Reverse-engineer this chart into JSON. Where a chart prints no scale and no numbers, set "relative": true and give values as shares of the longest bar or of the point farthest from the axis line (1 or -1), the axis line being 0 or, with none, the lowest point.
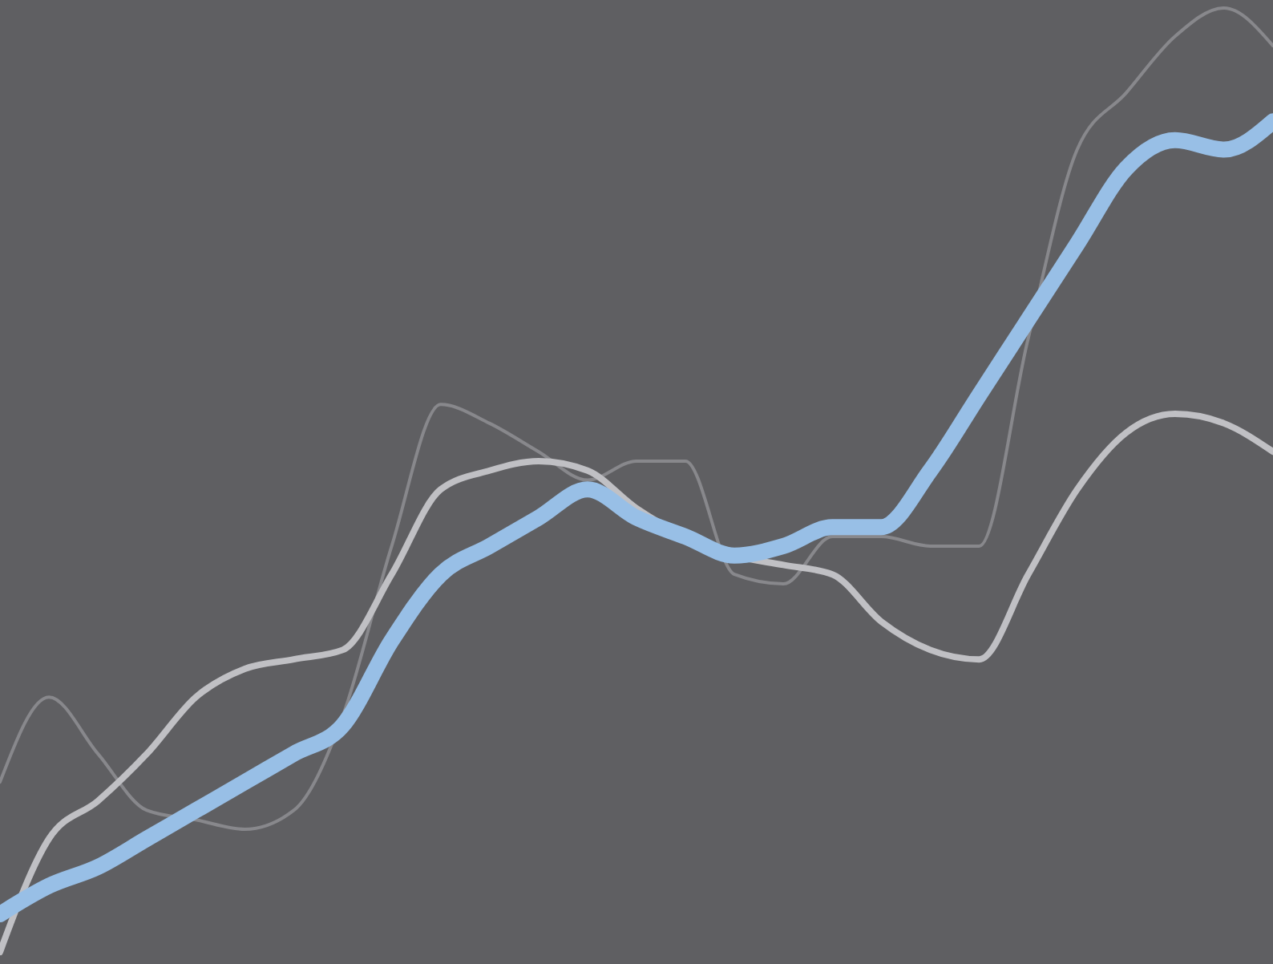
{
  "chart_data": {
    "type": "line",
    "relative": true,
    "tick_labels": false,
    "marker": "none",
    "line_style": "solid",
    "categories": [
      null,
      null,
      null,
      null,
      null,
      null,
      null,
      null,
      null,
      null,
      null,
      null,
      null,
      null,
      null,
      null,
      null,
      null,
      null,
      null,
      null,
      null,
      null,
      null,
      null,
      null,
      null
    ],
    "series": [
      {
        "color": "#88888c",
        "values": [
          0.18,
          0.27,
          0.21,
          0.15,
          0.14,
          0.13,
          0.15,
          0.25,
          0.43,
          0.58,
          0.56,
          0.53,
          0.5,
          0.52,
          0.52,
          0.4,
          0.39,
          0.44,
          0.44,
          0.43,
          0.43,
          0.65,
          0.85,
          0.91,
          0.97,
          1.0,
          0.96
        ]
      },
      {
        "color": "#c0c0c4",
        "values": [
          0.0,
          0.12,
          0.16,
          0.21,
          0.27,
          0.3,
          0.31,
          0.32,
          0.4,
          0.49,
          0.51,
          0.52,
          0.51,
          0.47,
          0.44,
          0.42,
          0.41,
          0.4,
          0.35,
          0.32,
          0.31,
          0.4,
          0.49,
          0.55,
          0.57,
          0.56,
          0.53
        ]
      },
      {
        "color": "#98bfe6",
        "values": [
          0.04,
          0.07,
          0.09,
          0.12,
          0.15,
          0.18,
          0.21,
          0.24,
          0.33,
          0.4,
          0.43,
          0.46,
          0.49,
          0.46,
          0.44,
          0.42,
          0.43,
          0.45,
          0.45,
          0.51,
          0.59,
          0.67,
          0.75,
          0.83,
          0.86,
          0.85,
          0.88
        ]
      }
    ]
  }
}
